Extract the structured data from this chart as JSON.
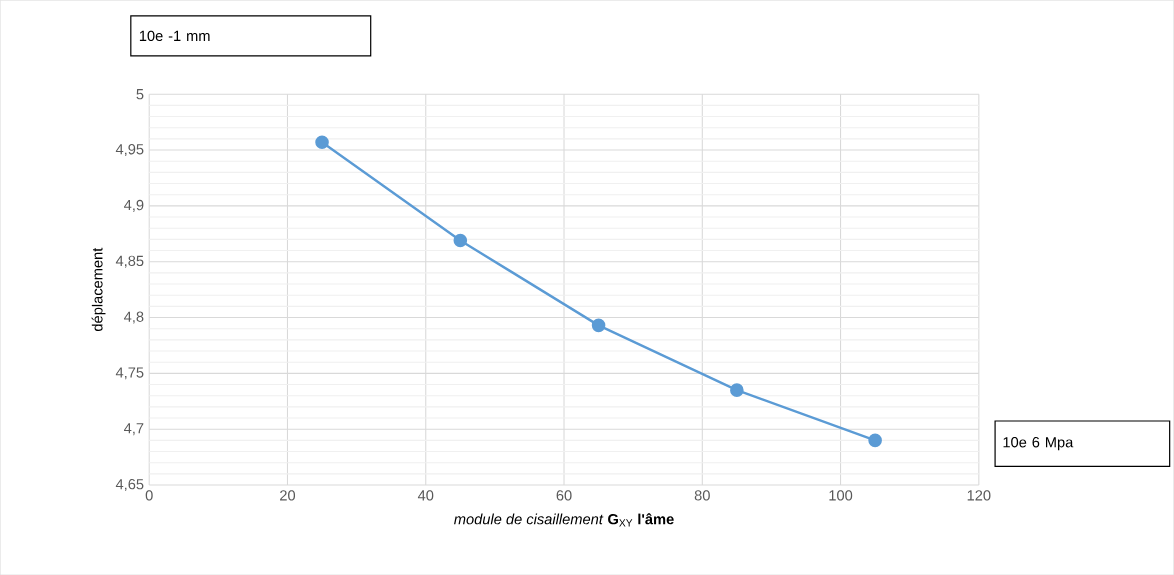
{
  "chart_data": {
    "type": "line",
    "xlabel": "*module de cisaillement* **G**$_{XY}$ **l'âme**",
    "ylabel": "déplacement",
    "annotations": [
      "10e -1 mm",
      "10e 6 Mpa"
    ],
    "x": [
      25,
      45,
      65,
      85,
      105
    ],
    "series": [
      {
        "color": "#5b9bd5",
        "values": [
          4.957,
          4.869,
          4.793,
          4.735,
          4.69
        ]
      }
    ],
    "xlim": [
      0,
      120
    ],
    "xticks": [
      0,
      20,
      40,
      60,
      80,
      100,
      120
    ],
    "ylim": [
      4.65,
      5
    ],
    "yticks": [
      {
        "value": 4.65,
        "label": "4,65"
      },
      {
        "value": 4.7,
        "label": "4,7"
      },
      {
        "value": 4.75,
        "label": "4,75"
      },
      {
        "value": 4.8,
        "label": "4,8"
      },
      {
        "value": 4.85,
        "label": "4,85"
      },
      {
        "value": 4.9,
        "label": "4,9"
      },
      {
        "value": 4.95,
        "label": "4,95"
      },
      5
    ],
    "grid": true,
    "marker": "circle",
    "line_style": "solid"
  }
}
